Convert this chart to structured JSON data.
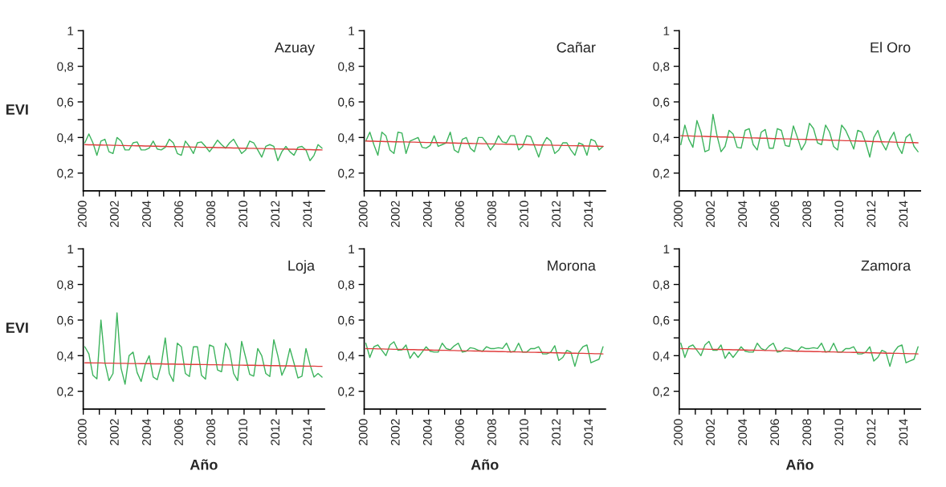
{
  "chart_data": [
    {
      "type": "line",
      "title": "Azuay",
      "ylabel": "EVI",
      "ylim": [
        0.1,
        1
      ],
      "xlim": [
        2000,
        2015
      ],
      "yticks": [
        {
          "value": 0.2,
          "label": "0,2"
        },
        {
          "value": 0.3,
          "label": null
        },
        {
          "value": 0.4,
          "label": "0,4"
        },
        {
          "value": 0.5,
          "label": null
        },
        {
          "value": 0.6,
          "label": "0,6"
        },
        {
          "value": 0.7,
          "label": null
        },
        {
          "value": 0.8,
          "label": "0,8"
        },
        {
          "value": 0.9,
          "label": null
        },
        {
          "value": 1,
          "label": "1"
        }
      ],
      "xticks": [
        2000,
        {
          "value": 2001,
          "label": null
        },
        2002,
        {
          "value": 2003,
          "label": null
        },
        2004,
        {
          "value": 2005,
          "label": null
        },
        2006,
        {
          "value": 2007,
          "label": null
        },
        2008,
        {
          "value": 2009,
          "label": null
        },
        2010,
        {
          "value": 2011,
          "label": null
        },
        2012,
        {
          "value": 2013,
          "label": null
        },
        2014
      ],
      "x": [
        2000.1,
        2000.35,
        2000.6,
        2000.85,
        2001.1,
        2001.35,
        2001.6,
        2001.85,
        2002.1,
        2002.35,
        2002.6,
        2002.85,
        2003.1,
        2003.35,
        2003.6,
        2003.85,
        2004.1,
        2004.35,
        2004.6,
        2004.85,
        2005.1,
        2005.35,
        2005.6,
        2005.85,
        2006.1,
        2006.35,
        2006.6,
        2006.85,
        2007.1,
        2007.35,
        2007.6,
        2007.85,
        2008.1,
        2008.35,
        2008.6,
        2008.85,
        2009.1,
        2009.35,
        2009.6,
        2009.85,
        2010.1,
        2010.35,
        2010.6,
        2010.85,
        2011.1,
        2011.35,
        2011.6,
        2011.85,
        2012.1,
        2012.35,
        2012.6,
        2012.85,
        2013.1,
        2013.35,
        2013.6,
        2013.85,
        2014.1,
        2014.35,
        2014.6,
        2014.85
      ],
      "series": [
        {
          "type": "line",
          "color": "#3cb35c",
          "values": [
            0.37,
            0.42,
            0.37,
            0.3,
            0.38,
            0.39,
            0.32,
            0.31,
            0.4,
            0.38,
            0.33,
            0.33,
            0.37,
            0.375,
            0.33,
            0.33,
            0.34,
            0.38,
            0.335,
            0.33,
            0.345,
            0.39,
            0.37,
            0.31,
            0.3,
            0.38,
            0.35,
            0.31,
            0.37,
            0.375,
            0.35,
            0.32,
            0.35,
            0.385,
            0.36,
            0.34,
            0.37,
            0.39,
            0.35,
            0.31,
            0.33,
            0.38,
            0.37,
            0.33,
            0.29,
            0.35,
            0.36,
            0.35,
            0.27,
            0.32,
            0.35,
            0.32,
            0.3,
            0.345,
            0.35,
            0.33,
            0.27,
            0.3,
            0.36,
            0.34
          ]
        },
        {
          "type": "line",
          "color": "#e03c3c",
          "values": [
            0.36,
            0.359,
            0.359,
            0.358,
            0.358,
            0.357,
            0.357,
            0.356,
            0.356,
            0.355,
            0.355,
            0.354,
            0.354,
            0.353,
            0.353,
            0.352,
            0.352,
            0.351,
            0.351,
            0.35,
            0.35,
            0.349,
            0.349,
            0.348,
            0.348,
            0.347,
            0.347,
            0.346,
            0.346,
            0.345,
            0.345,
            0.344,
            0.344,
            0.343,
            0.343,
            0.342,
            0.342,
            0.341,
            0.341,
            0.34,
            0.34,
            0.339,
            0.339,
            0.338,
            0.338,
            0.337,
            0.337,
            0.336,
            0.336,
            0.335,
            0.335,
            0.334,
            0.334,
            0.333,
            0.333,
            0.332,
            0.332,
            0.331,
            0.331,
            0.33
          ]
        }
      ]
    },
    {
      "type": "line",
      "title": "Cañar",
      "ylim": [
        0.1,
        1
      ],
      "xlim": [
        2000,
        2015
      ],
      "yticks": [
        {
          "value": 0.2,
          "label": "0,2"
        },
        {
          "value": 0.3,
          "label": null
        },
        {
          "value": 0.4,
          "label": "0,4"
        },
        {
          "value": 0.5,
          "label": null
        },
        {
          "value": 0.6,
          "label": "0,6"
        },
        {
          "value": 0.7,
          "label": null
        },
        {
          "value": 0.8,
          "label": "0,8"
        },
        {
          "value": 0.9,
          "label": null
        },
        {
          "value": 1,
          "label": "1"
        }
      ],
      "xticks": [
        2000,
        {
          "value": 2001,
          "label": null
        },
        2002,
        {
          "value": 2003,
          "label": null
        },
        2004,
        {
          "value": 2005,
          "label": null
        },
        2006,
        {
          "value": 2007,
          "label": null
        },
        2008,
        {
          "value": 2009,
          "label": null
        },
        2010,
        {
          "value": 2011,
          "label": null
        },
        2012,
        {
          "value": 2013,
          "label": null
        },
        2014
      ],
      "x": [
        2000.1,
        2000.35,
        2000.6,
        2000.85,
        2001.1,
        2001.35,
        2001.6,
        2001.85,
        2002.1,
        2002.35,
        2002.6,
        2002.85,
        2003.1,
        2003.35,
        2003.6,
        2003.85,
        2004.1,
        2004.35,
        2004.6,
        2004.85,
        2005.1,
        2005.35,
        2005.6,
        2005.85,
        2006.1,
        2006.35,
        2006.6,
        2006.85,
        2007.1,
        2007.35,
        2007.6,
        2007.85,
        2008.1,
        2008.35,
        2008.6,
        2008.85,
        2009.1,
        2009.35,
        2009.6,
        2009.85,
        2010.1,
        2010.35,
        2010.6,
        2010.85,
        2011.1,
        2011.35,
        2011.6,
        2011.85,
        2012.1,
        2012.35,
        2012.6,
        2012.85,
        2013.1,
        2013.35,
        2013.6,
        2013.85,
        2014.1,
        2014.35,
        2014.6,
        2014.85
      ],
      "series": [
        {
          "type": "line",
          "color": "#3cb35c",
          "values": [
            0.38,
            0.43,
            0.36,
            0.3,
            0.43,
            0.41,
            0.33,
            0.31,
            0.43,
            0.425,
            0.31,
            0.38,
            0.39,
            0.4,
            0.345,
            0.34,
            0.355,
            0.41,
            0.35,
            0.36,
            0.37,
            0.43,
            0.33,
            0.315,
            0.39,
            0.4,
            0.34,
            0.32,
            0.4,
            0.4,
            0.37,
            0.33,
            0.36,
            0.41,
            0.375,
            0.37,
            0.41,
            0.41,
            0.33,
            0.35,
            0.41,
            0.405,
            0.35,
            0.29,
            0.36,
            0.4,
            0.38,
            0.31,
            0.33,
            0.37,
            0.37,
            0.33,
            0.3,
            0.37,
            0.36,
            0.3,
            0.39,
            0.38,
            0.33,
            0.35
          ]
        },
        {
          "type": "line",
          "color": "#e03c3c",
          "values": [
            0.38,
            0.379,
            0.379,
            0.378,
            0.378,
            0.377,
            0.377,
            0.376,
            0.376,
            0.375,
            0.375,
            0.374,
            0.374,
            0.373,
            0.373,
            0.372,
            0.372,
            0.371,
            0.371,
            0.37,
            0.37,
            0.369,
            0.369,
            0.368,
            0.368,
            0.367,
            0.367,
            0.366,
            0.366,
            0.365,
            0.365,
            0.364,
            0.364,
            0.363,
            0.363,
            0.362,
            0.362,
            0.361,
            0.361,
            0.36,
            0.36,
            0.359,
            0.359,
            0.358,
            0.358,
            0.357,
            0.357,
            0.356,
            0.356,
            0.355,
            0.355,
            0.354,
            0.354,
            0.353,
            0.353,
            0.352,
            0.352,
            0.351,
            0.351,
            0.35
          ]
        }
      ]
    },
    {
      "type": "line",
      "title": "El Oro",
      "ylim": [
        0.1,
        1
      ],
      "xlim": [
        2000,
        2015
      ],
      "yticks": [
        {
          "value": 0.2,
          "label": "0,2"
        },
        {
          "value": 0.3,
          "label": null
        },
        {
          "value": 0.4,
          "label": "0,4"
        },
        {
          "value": 0.5,
          "label": null
        },
        {
          "value": 0.6,
          "label": "0,6"
        },
        {
          "value": 0.7,
          "label": null
        },
        {
          "value": 0.8,
          "label": "0,8"
        },
        {
          "value": 0.9,
          "label": null
        },
        {
          "value": 1,
          "label": "1"
        }
      ],
      "xticks": [
        2000,
        {
          "value": 2001,
          "label": null
        },
        2002,
        {
          "value": 2003,
          "label": null
        },
        2004,
        {
          "value": 2005,
          "label": null
        },
        2006,
        {
          "value": 2007,
          "label": null
        },
        2008,
        {
          "value": 2009,
          "label": null
        },
        2010,
        {
          "value": 2011,
          "label": null
        },
        2012,
        {
          "value": 2013,
          "label": null
        },
        2014
      ],
      "x": [
        2000.1,
        2000.35,
        2000.6,
        2000.85,
        2001.1,
        2001.35,
        2001.6,
        2001.85,
        2002.1,
        2002.35,
        2002.6,
        2002.85,
        2003.1,
        2003.35,
        2003.6,
        2003.85,
        2004.1,
        2004.35,
        2004.6,
        2004.85,
        2005.1,
        2005.35,
        2005.6,
        2005.85,
        2006.1,
        2006.35,
        2006.6,
        2006.85,
        2007.1,
        2007.35,
        2007.6,
        2007.85,
        2008.1,
        2008.35,
        2008.6,
        2008.85,
        2009.1,
        2009.35,
        2009.6,
        2009.85,
        2010.1,
        2010.35,
        2010.6,
        2010.85,
        2011.1,
        2011.35,
        2011.6,
        2011.85,
        2012.1,
        2012.35,
        2012.6,
        2012.85,
        2013.1,
        2013.35,
        2013.6,
        2013.85,
        2014.1,
        2014.35,
        2014.6,
        2014.85
      ],
      "series": [
        {
          "type": "line",
          "color": "#3cb35c",
          "values": [
            0.36,
            0.47,
            0.39,
            0.345,
            0.495,
            0.43,
            0.32,
            0.33,
            0.53,
            0.41,
            0.32,
            0.35,
            0.44,
            0.42,
            0.345,
            0.34,
            0.44,
            0.45,
            0.36,
            0.33,
            0.43,
            0.445,
            0.34,
            0.34,
            0.45,
            0.44,
            0.355,
            0.35,
            0.465,
            0.4,
            0.33,
            0.37,
            0.48,
            0.45,
            0.37,
            0.36,
            0.47,
            0.43,
            0.35,
            0.33,
            0.47,
            0.44,
            0.39,
            0.335,
            0.44,
            0.43,
            0.37,
            0.29,
            0.4,
            0.44,
            0.37,
            0.33,
            0.39,
            0.43,
            0.35,
            0.31,
            0.4,
            0.42,
            0.35,
            0.32
          ]
        },
        {
          "type": "line",
          "color": "#e03c3c",
          "values": [
            0.41,
            0.409,
            0.409,
            0.408,
            0.407,
            0.407,
            0.406,
            0.405,
            0.405,
            0.404,
            0.403,
            0.403,
            0.402,
            0.401,
            0.401,
            0.4,
            0.399,
            0.398,
            0.398,
            0.397,
            0.396,
            0.396,
            0.395,
            0.394,
            0.394,
            0.393,
            0.392,
            0.392,
            0.391,
            0.39,
            0.39,
            0.389,
            0.388,
            0.388,
            0.387,
            0.386,
            0.386,
            0.385,
            0.384,
            0.384,
            0.383,
            0.382,
            0.382,
            0.381,
            0.38,
            0.379,
            0.379,
            0.378,
            0.377,
            0.377,
            0.376,
            0.375,
            0.375,
            0.374,
            0.373,
            0.373,
            0.372,
            0.371,
            0.371,
            0.37
          ]
        }
      ]
    },
    {
      "type": "line",
      "title": "Loja",
      "ylabel": "EVI",
      "xlabel": "Año",
      "ylim": [
        0.1,
        1
      ],
      "xlim": [
        2000,
        2015
      ],
      "yticks": [
        {
          "value": 0.2,
          "label": "0,2"
        },
        {
          "value": 0.3,
          "label": null
        },
        {
          "value": 0.4,
          "label": "0,4"
        },
        {
          "value": 0.5,
          "label": null
        },
        {
          "value": 0.6,
          "label": "0,6"
        },
        {
          "value": 0.7,
          "label": null
        },
        {
          "value": 0.8,
          "label": "0,8"
        },
        {
          "value": 0.9,
          "label": null
        },
        {
          "value": 1,
          "label": "1"
        }
      ],
      "xticks": [
        2000,
        {
          "value": 2001,
          "label": null
        },
        2002,
        {
          "value": 2003,
          "label": null
        },
        2004,
        {
          "value": 2005,
          "label": null
        },
        2006,
        {
          "value": 2007,
          "label": null
        },
        2008,
        {
          "value": 2009,
          "label": null
        },
        2010,
        {
          "value": 2011,
          "label": null
        },
        2012,
        {
          "value": 2013,
          "label": null
        },
        2014
      ],
      "x": [
        2000.1,
        2000.35,
        2000.6,
        2000.85,
        2001.1,
        2001.35,
        2001.6,
        2001.85,
        2002.1,
        2002.35,
        2002.6,
        2002.85,
        2003.1,
        2003.35,
        2003.6,
        2003.85,
        2004.1,
        2004.35,
        2004.6,
        2004.85,
        2005.1,
        2005.35,
        2005.6,
        2005.85,
        2006.1,
        2006.35,
        2006.6,
        2006.85,
        2007.1,
        2007.35,
        2007.6,
        2007.85,
        2008.1,
        2008.35,
        2008.6,
        2008.85,
        2009.1,
        2009.35,
        2009.6,
        2009.85,
        2010.1,
        2010.35,
        2010.6,
        2010.85,
        2011.1,
        2011.35,
        2011.6,
        2011.85,
        2012.1,
        2012.35,
        2012.6,
        2012.85,
        2013.1,
        2013.35,
        2013.6,
        2013.85,
        2014.1,
        2014.35,
        2014.6,
        2014.85
      ],
      "series": [
        {
          "type": "line",
          "color": "#3cb35c",
          "values": [
            0.45,
            0.41,
            0.29,
            0.27,
            0.6,
            0.36,
            0.26,
            0.3,
            0.64,
            0.33,
            0.24,
            0.4,
            0.42,
            0.305,
            0.255,
            0.35,
            0.4,
            0.28,
            0.265,
            0.35,
            0.5,
            0.3,
            0.255,
            0.47,
            0.45,
            0.3,
            0.283,
            0.45,
            0.45,
            0.29,
            0.268,
            0.46,
            0.45,
            0.32,
            0.31,
            0.47,
            0.43,
            0.3,
            0.26,
            0.48,
            0.39,
            0.295,
            0.285,
            0.44,
            0.4,
            0.3,
            0.283,
            0.49,
            0.4,
            0.29,
            0.34,
            0.44,
            0.36,
            0.275,
            0.285,
            0.44,
            0.35,
            0.28,
            0.3,
            0.28
          ]
        },
        {
          "type": "line",
          "color": "#e03c3c",
          "values": [
            0.36,
            0.36,
            0.359,
            0.359,
            0.359,
            0.358,
            0.358,
            0.358,
            0.357,
            0.357,
            0.357,
            0.356,
            0.356,
            0.356,
            0.355,
            0.355,
            0.355,
            0.354,
            0.354,
            0.354,
            0.353,
            0.353,
            0.353,
            0.352,
            0.352,
            0.352,
            0.351,
            0.351,
            0.351,
            0.35,
            0.35,
            0.349,
            0.349,
            0.349,
            0.348,
            0.348,
            0.348,
            0.347,
            0.347,
            0.347,
            0.346,
            0.346,
            0.346,
            0.345,
            0.345,
            0.345,
            0.344,
            0.344,
            0.344,
            0.343,
            0.343,
            0.343,
            0.342,
            0.342,
            0.342,
            0.341,
            0.341,
            0.341,
            0.34,
            0.34
          ]
        }
      ]
    },
    {
      "type": "line",
      "title": "Morona",
      "xlabel": "Año",
      "ylim": [
        0.1,
        1
      ],
      "xlim": [
        2000,
        2015
      ],
      "yticks": [
        {
          "value": 0.2,
          "label": "0,2"
        },
        {
          "value": 0.3,
          "label": null
        },
        {
          "value": 0.4,
          "label": "0,4"
        },
        {
          "value": 0.5,
          "label": null
        },
        {
          "value": 0.6,
          "label": "0,6"
        },
        {
          "value": 0.7,
          "label": null
        },
        {
          "value": 0.8,
          "label": "0,8"
        },
        {
          "value": 0.9,
          "label": null
        },
        {
          "value": 1,
          "label": "1"
        }
      ],
      "xticks": [
        2000,
        {
          "value": 2001,
          "label": null
        },
        2002,
        {
          "value": 2003,
          "label": null
        },
        2004,
        {
          "value": 2005,
          "label": null
        },
        2006,
        {
          "value": 2007,
          "label": null
        },
        2008,
        {
          "value": 2009,
          "label": null
        },
        2010,
        {
          "value": 2011,
          "label": null
        },
        2012,
        {
          "value": 2013,
          "label": null
        },
        2014
      ],
      "x": [
        2000.1,
        2000.35,
        2000.6,
        2000.85,
        2001.1,
        2001.35,
        2001.6,
        2001.85,
        2002.1,
        2002.35,
        2002.6,
        2002.85,
        2003.1,
        2003.35,
        2003.6,
        2003.85,
        2004.1,
        2004.35,
        2004.6,
        2004.85,
        2005.1,
        2005.35,
        2005.6,
        2005.85,
        2006.1,
        2006.35,
        2006.6,
        2006.85,
        2007.1,
        2007.35,
        2007.6,
        2007.85,
        2008.1,
        2008.35,
        2008.6,
        2008.85,
        2009.1,
        2009.35,
        2009.6,
        2009.85,
        2010.1,
        2010.35,
        2010.6,
        2010.85,
        2011.1,
        2011.35,
        2011.6,
        2011.85,
        2012.1,
        2012.35,
        2012.6,
        2012.85,
        2013.1,
        2013.35,
        2013.6,
        2013.85,
        2014.1,
        2014.35,
        2014.6,
        2014.85
      ],
      "series": [
        {
          "type": "line",
          "color": "#3cb35c",
          "values": [
            0.47,
            0.39,
            0.45,
            0.46,
            0.43,
            0.4,
            0.46,
            0.478,
            0.43,
            0.433,
            0.46,
            0.385,
            0.42,
            0.39,
            0.42,
            0.45,
            0.425,
            0.42,
            0.42,
            0.47,
            0.44,
            0.433,
            0.455,
            0.47,
            0.42,
            0.425,
            0.445,
            0.44,
            0.43,
            0.425,
            0.45,
            0.44,
            0.44,
            0.445,
            0.44,
            0.47,
            0.42,
            0.425,
            0.47,
            0.42,
            0.42,
            0.44,
            0.44,
            0.45,
            0.41,
            0.41,
            0.42,
            0.456,
            0.373,
            0.39,
            0.43,
            0.42,
            0.34,
            0.42,
            0.45,
            0.46,
            0.36,
            0.37,
            0.38,
            0.45
          ]
        },
        {
          "type": "line",
          "color": "#e03c3c",
          "values": [
            0.44,
            0.439,
            0.439,
            0.438,
            0.438,
            0.437,
            0.437,
            0.436,
            0.436,
            0.435,
            0.435,
            0.434,
            0.434,
            0.433,
            0.433,
            0.432,
            0.432,
            0.431,
            0.431,
            0.43,
            0.43,
            0.429,
            0.429,
            0.428,
            0.428,
            0.427,
            0.427,
            0.426,
            0.426,
            0.425,
            0.425,
            0.424,
            0.424,
            0.423,
            0.423,
            0.422,
            0.422,
            0.421,
            0.421,
            0.42,
            0.42,
            0.419,
            0.419,
            0.418,
            0.418,
            0.417,
            0.417,
            0.416,
            0.416,
            0.415,
            0.415,
            0.414,
            0.414,
            0.413,
            0.413,
            0.412,
            0.412,
            0.411,
            0.411,
            0.41
          ]
        }
      ]
    },
    {
      "type": "line",
      "title": "Zamora",
      "xlabel": "Año",
      "ylim": [
        0.1,
        1
      ],
      "xlim": [
        2000,
        2015
      ],
      "yticks": [
        {
          "value": 0.2,
          "label": "0,2"
        },
        {
          "value": 0.3,
          "label": null
        },
        {
          "value": 0.4,
          "label": "0,4"
        },
        {
          "value": 0.5,
          "label": null
        },
        {
          "value": 0.6,
          "label": "0,6"
        },
        {
          "value": 0.7,
          "label": null
        },
        {
          "value": 0.8,
          "label": "0,8"
        },
        {
          "value": 0.9,
          "label": null
        },
        {
          "value": 1,
          "label": "1"
        }
      ],
      "xticks": [
        2000,
        {
          "value": 2001,
          "label": null
        },
        2002,
        {
          "value": 2003,
          "label": null
        },
        2004,
        {
          "value": 2005,
          "label": null
        },
        2006,
        {
          "value": 2007,
          "label": null
        },
        2008,
        {
          "value": 2009,
          "label": null
        },
        2010,
        {
          "value": 2011,
          "label": null
        },
        2012,
        {
          "value": 2013,
          "label": null
        },
        2014
      ],
      "x": [
        2000.1,
        2000.35,
        2000.6,
        2000.85,
        2001.1,
        2001.35,
        2001.6,
        2001.85,
        2002.1,
        2002.35,
        2002.6,
        2002.85,
        2003.1,
        2003.35,
        2003.6,
        2003.85,
        2004.1,
        2004.35,
        2004.6,
        2004.85,
        2005.1,
        2005.35,
        2005.6,
        2005.85,
        2006.1,
        2006.35,
        2006.6,
        2006.85,
        2007.1,
        2007.35,
        2007.6,
        2007.85,
        2008.1,
        2008.35,
        2008.6,
        2008.85,
        2009.1,
        2009.35,
        2009.6,
        2009.85,
        2010.1,
        2010.35,
        2010.6,
        2010.85,
        2011.1,
        2011.35,
        2011.6,
        2011.85,
        2012.1,
        2012.35,
        2012.6,
        2012.85,
        2013.1,
        2013.35,
        2013.6,
        2013.85,
        2014.1,
        2014.35,
        2014.6,
        2014.85
      ],
      "series": [
        {
          "type": "line",
          "color": "#3cb35c",
          "values": [
            0.47,
            0.39,
            0.45,
            0.46,
            0.43,
            0.4,
            0.46,
            0.48,
            0.43,
            0.43,
            0.46,
            0.385,
            0.42,
            0.39,
            0.42,
            0.45,
            0.425,
            0.42,
            0.42,
            0.47,
            0.44,
            0.43,
            0.455,
            0.47,
            0.42,
            0.425,
            0.445,
            0.44,
            0.43,
            0.425,
            0.45,
            0.44,
            0.44,
            0.445,
            0.44,
            0.47,
            0.42,
            0.425,
            0.47,
            0.42,
            0.42,
            0.44,
            0.44,
            0.45,
            0.41,
            0.41,
            0.42,
            0.45,
            0.37,
            0.39,
            0.43,
            0.42,
            0.34,
            0.42,
            0.45,
            0.46,
            0.36,
            0.37,
            0.38,
            0.45
          ]
        },
        {
          "type": "line",
          "color": "#e03c3c",
          "values": [
            0.44,
            0.439,
            0.439,
            0.438,
            0.438,
            0.437,
            0.437,
            0.436,
            0.436,
            0.435,
            0.435,
            0.434,
            0.434,
            0.433,
            0.433,
            0.432,
            0.432,
            0.431,
            0.431,
            0.43,
            0.43,
            0.429,
            0.429,
            0.428,
            0.428,
            0.427,
            0.427,
            0.426,
            0.426,
            0.425,
            0.425,
            0.424,
            0.424,
            0.423,
            0.423,
            0.422,
            0.422,
            0.421,
            0.421,
            0.42,
            0.42,
            0.419,
            0.419,
            0.418,
            0.418,
            0.417,
            0.417,
            0.416,
            0.416,
            0.415,
            0.415,
            0.414,
            0.414,
            0.413,
            0.413,
            0.412,
            0.412,
            0.411,
            0.411,
            0.41
          ]
        }
      ]
    }
  ]
}
